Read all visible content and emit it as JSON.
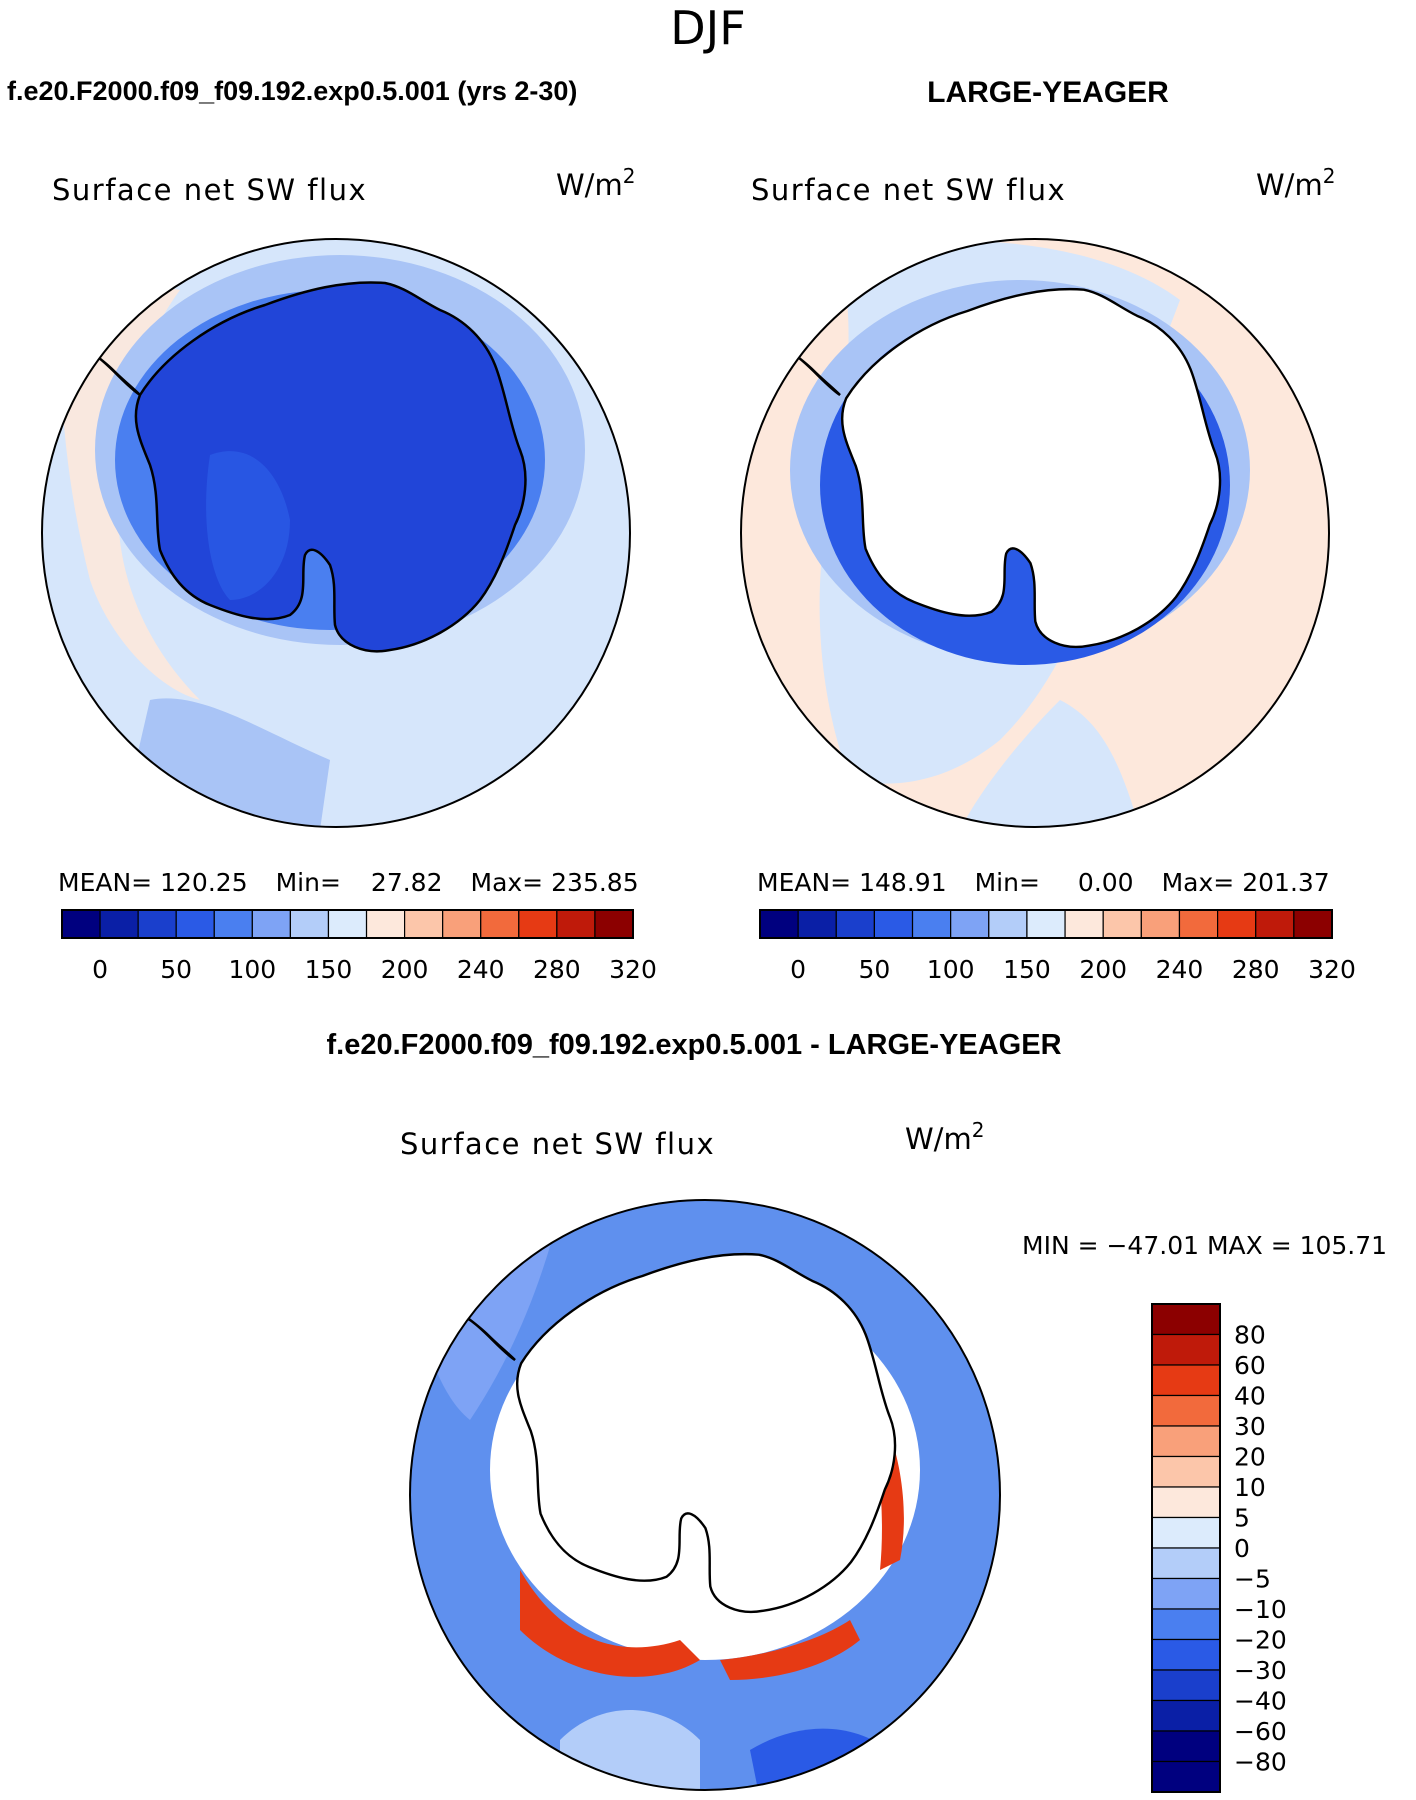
{
  "season": "DJF",
  "colors": {
    "main_scale": [
      "#00007f",
      "#0a1fa6",
      "#1a3fcc",
      "#2a5ae6",
      "#4a7ff0",
      "#7ea3f5",
      "#b3cdf9",
      "#dcebfc",
      "#fde8dc",
      "#fcc6aa",
      "#f9a07a",
      "#f26a3c",
      "#e63a14",
      "#bf1a0a",
      "#8c0000"
    ],
    "diff_scale": [
      "#00007f",
      "#0a1fa6",
      "#1a3fcc",
      "#2a5ae6",
      "#4a7ff0",
      "#7ea3f5",
      "#b3cdf9",
      "#dcebfc",
      "#fde8dc",
      "#fcc6aa",
      "#f9a07a",
      "#f26a3c",
      "#e63a14",
      "#bf1a0a",
      "#8c0000"
    ],
    "antarctica_model": "#2145d8",
    "ocean_light": "#d6e6fb",
    "ocean_mid": "#a9c4f6",
    "ocean_diff": "#5f90ee",
    "warm_pale": "#fde8dc"
  },
  "panels": [
    {
      "id": "model",
      "case_title": "f.e20.F2000.f09_f09.192.exp0.5.001 (yrs 2-30)",
      "var_label": "Surface net SW flux",
      "units": "W/m",
      "units_exp": "2",
      "stats": {
        "mean_label": "MEAN=",
        "mean": "120.25",
        "min_label": "Min=",
        "min": "27.82",
        "max_label": "Max=",
        "max": "235.85"
      },
      "tick_labels": [
        "0",
        "50",
        "100",
        "150",
        "200",
        "240",
        "280",
        "320"
      ]
    },
    {
      "id": "obs",
      "case_title": "LARGE-YEAGER",
      "var_label": "Surface net SW flux",
      "units": "W/m",
      "units_exp": "2",
      "stats": {
        "mean_label": "MEAN=",
        "mean": "148.91",
        "min_label": "Min=",
        "min": "0.00",
        "max_label": "Max=",
        "max": "201.37"
      },
      "tick_labels": [
        "0",
        "50",
        "100",
        "150",
        "200",
        "240",
        "280",
        "320"
      ]
    },
    {
      "id": "diff",
      "case_title": "f.e20.F2000.f09_f09.192.exp0.5.001 - LARGE-YEAGER",
      "var_label": "Surface net SW flux",
      "units": "W/m",
      "units_exp": "2",
      "minmax_label": "MIN = −47.01 MAX = 105.71",
      "tick_labels": [
        "80",
        "60",
        "40",
        "30",
        "20",
        "10",
        "5",
        "0",
        "−5",
        "−10",
        "−20",
        "−30",
        "−40",
        "−60",
        "−80"
      ]
    }
  ]
}
